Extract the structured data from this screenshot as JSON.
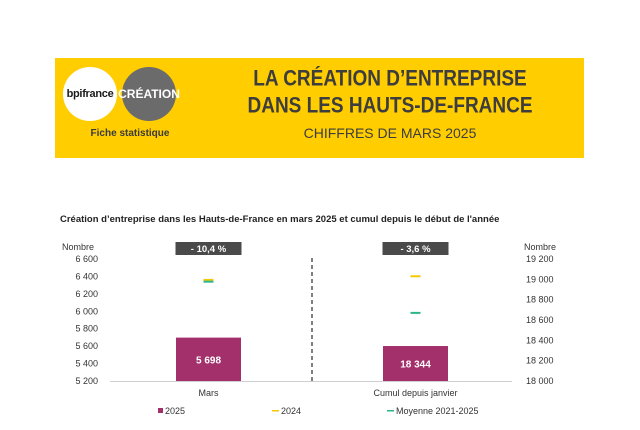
{
  "header": {
    "logo_left": "bpifrance",
    "logo_right": "CRÉATION",
    "fiche_label": "Fiche statistique",
    "title_line1": "LA CRÉATION D’ENTREPRISE",
    "title_line2": "DANS LES HAUTS-DE-FRANCE",
    "subtitle": "CHIFFRES DE MARS 2025"
  },
  "colors": {
    "banner": "#FFCD00",
    "series_2025": "#A3306A",
    "series_2024": "#F5C800",
    "series_avg": "#2BB58A",
    "badge": "#4A4A4A"
  },
  "chart_data": [
    {
      "type": "bar",
      "title": "Création d’entreprise dans les Hauts-de-France  en mars 2025 et cumul depuis le début de l'année",
      "ylabel": "Nombre",
      "category": "Mars",
      "ylim": [
        5200,
        6600
      ],
      "yticks": [
        "6 600",
        "6 400",
        "6 200",
        "6 000",
        "5 800",
        "5 600",
        "5 400",
        "5 200"
      ],
      "yticks_values": [
        6600,
        6400,
        6200,
        6000,
        5800,
        5600,
        5400,
        5200
      ],
      "bar_2025": 5698,
      "bar_label": "5 698",
      "marker_2024": 6360,
      "marker_avg": 6340,
      "badge": "- 10,4 %"
    },
    {
      "type": "bar",
      "title": "",
      "ylabel": "Nombre",
      "category": "Cumul depuis janvier",
      "ylim": [
        18000,
        19200
      ],
      "yticks": [
        "19 200",
        "19 000",
        "18 800",
        "18 600",
        "18 400",
        "18 200",
        "18 000"
      ],
      "yticks_values": [
        19200,
        19000,
        18800,
        18600,
        18400,
        18200,
        18000
      ],
      "bar_2025": 18344,
      "bar_label": "18 344",
      "marker_2024": 19030,
      "marker_avg": 18670,
      "badge": "- 3,6 %"
    }
  ],
  "legend": {
    "items": [
      "2025",
      "2024",
      "Moyenne 2021-2025"
    ]
  }
}
